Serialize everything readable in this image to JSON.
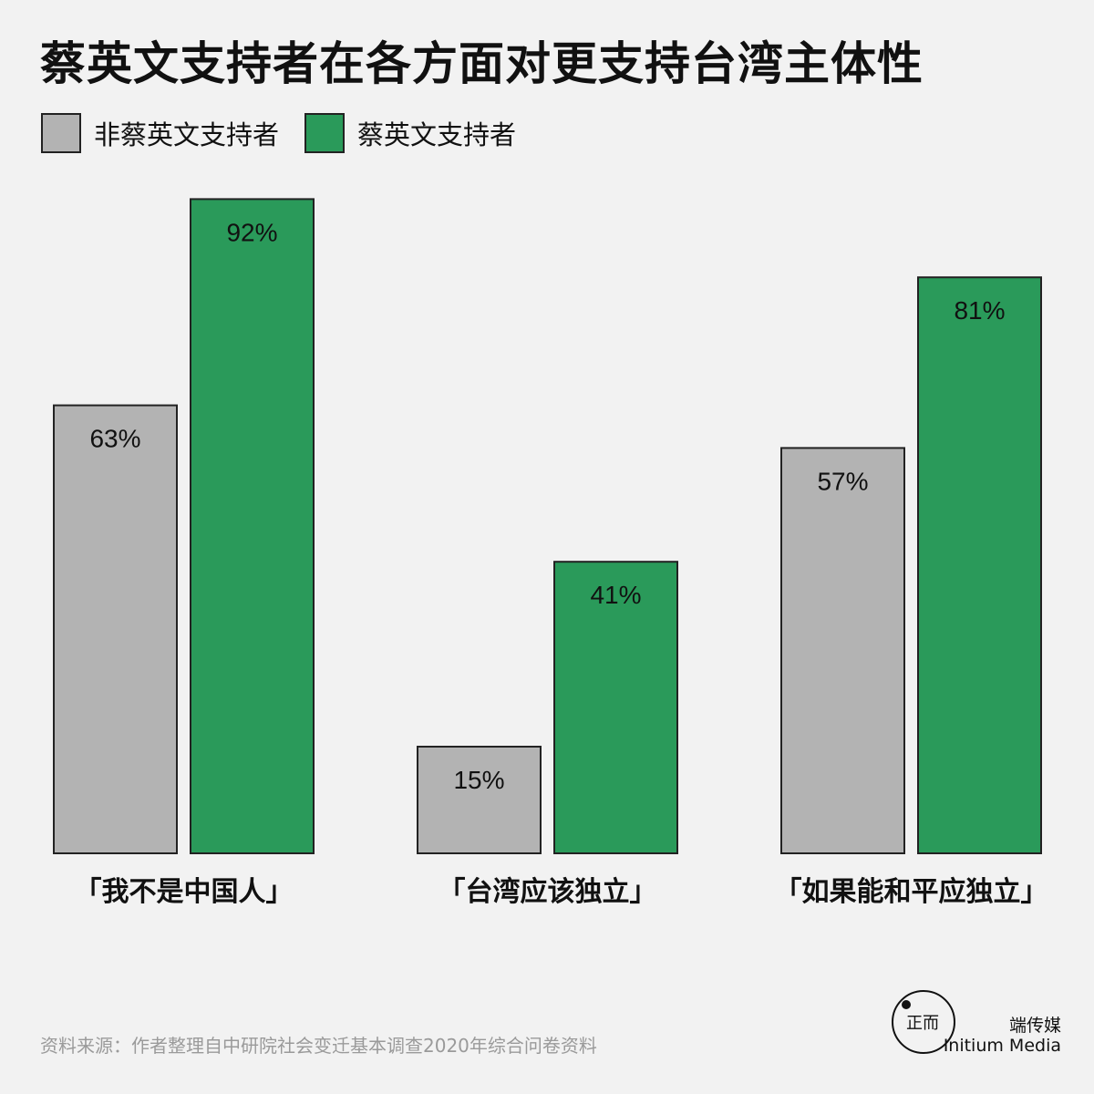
{
  "title": "蔡英文支持者在各方面对更支持台湾主体性",
  "legend": [
    {
      "label": "非蔡英文支持者",
      "color": "#b3b3b3"
    },
    {
      "label": "蔡英文支持者",
      "color": "#2a9a5a"
    }
  ],
  "chart_data": {
    "type": "bar",
    "title": "蔡英文支持者在各方面对更支持台湾主体性",
    "categories": [
      "「我不是中国人」",
      "「台湾应该独立」",
      "「如果能和平应独立」"
    ],
    "series": [
      {
        "name": "非蔡英文支持者",
        "color": "#b3b3b3",
        "values": [
          63,
          15,
          57
        ],
        "labels": [
          "63%",
          "15%",
          "57%"
        ]
      },
      {
        "name": "蔡英文支持者",
        "color": "#2a9a5a",
        "values": [
          92,
          41,
          81
        ],
        "labels": [
          "92%",
          "41%",
          "81%"
        ]
      }
    ],
    "ylim": [
      0,
      100
    ],
    "unit": "%",
    "grid": false,
    "legend_position": "top-left"
  },
  "source": "资料来源：作者整理自中研院社会变迁基本调查2020年综合问卷资料",
  "logo": {
    "mark": "正而",
    "cn": "端传媒",
    "en": "Initium Media"
  }
}
